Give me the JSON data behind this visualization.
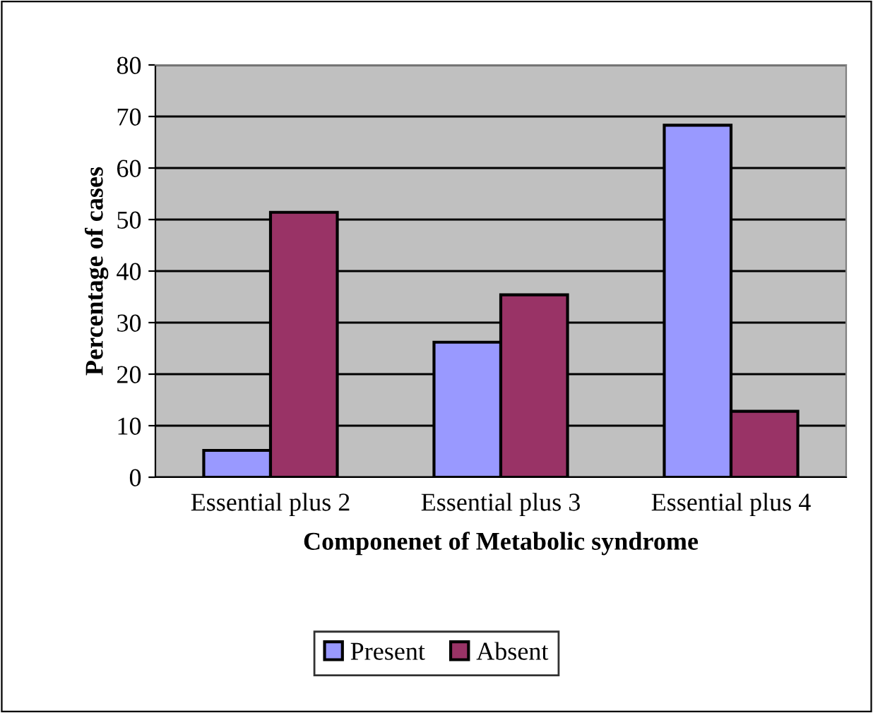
{
  "chart_data": {
    "type": "bar",
    "xlabel": "Componenet of Metabolic syndrome",
    "ylabel": "Percentage of cases",
    "categories": [
      "Essential plus 2",
      "Essential plus 3",
      "Essential plus 4"
    ],
    "series": [
      {
        "name": "Present",
        "color": "#9999ff",
        "values": [
          5.2,
          26.2,
          68.3
        ]
      },
      {
        "name": "Absent",
        "color": "#993366",
        "values": [
          51.4,
          35.4,
          12.8
        ]
      }
    ],
    "ylim": [
      0,
      80
    ],
    "yticks": [
      0,
      10,
      20,
      30,
      40,
      50,
      60,
      70,
      80
    ],
    "grid": "y",
    "legend": "bottom"
  }
}
